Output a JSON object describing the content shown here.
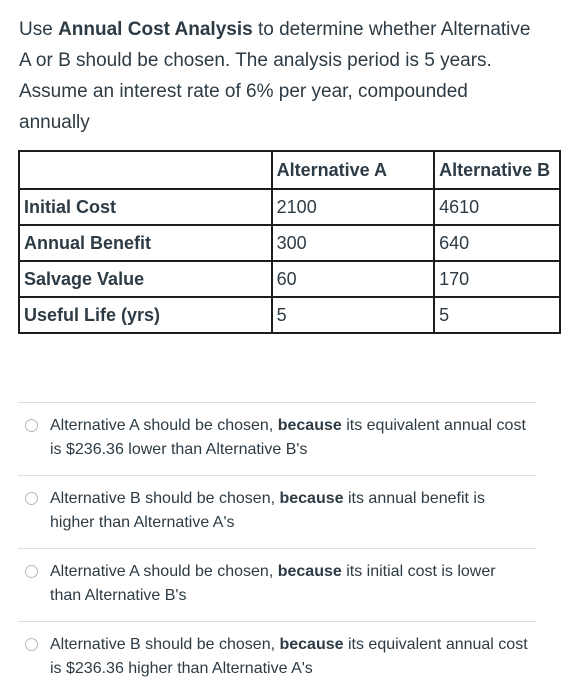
{
  "question": {
    "prefix": "Use ",
    "emphasis": "Annual Cost Analysis",
    "suffix": " to determine whether Alternative A or B should be chosen. The analysis period is 5 years. Assume an interest rate of 6% per year, compounded annually"
  },
  "table": {
    "headers": [
      "",
      "Alternative A",
      "Alternative B"
    ],
    "rows": [
      {
        "label": "Initial Cost",
        "a": "2100",
        "b": "4610"
      },
      {
        "label": "Annual Benefit",
        "a": "300",
        "b": "640"
      },
      {
        "label": "Salvage Value",
        "a": "60",
        "b": "170"
      },
      {
        "label": "Useful Life (yrs)",
        "a": "5",
        "b": "5"
      }
    ]
  },
  "options": [
    {
      "before": "Alternative A should be chosen, ",
      "bold": "because",
      "after": " its equivalent annual cost is $236.36 lower than Alternative B's"
    },
    {
      "before": "Alternative B should be chosen, ",
      "bold": "because",
      "after": " its annual benefit is higher than Alternative A's"
    },
    {
      "before": "Alternative A should be chosen, ",
      "bold": "because",
      "after": " its initial cost is lower than Alternative B's"
    },
    {
      "before": "Alternative B should be chosen, ",
      "bold": "because",
      "after": " its equivalent annual cost is $236.36 higher than Alternative A's"
    }
  ]
}
